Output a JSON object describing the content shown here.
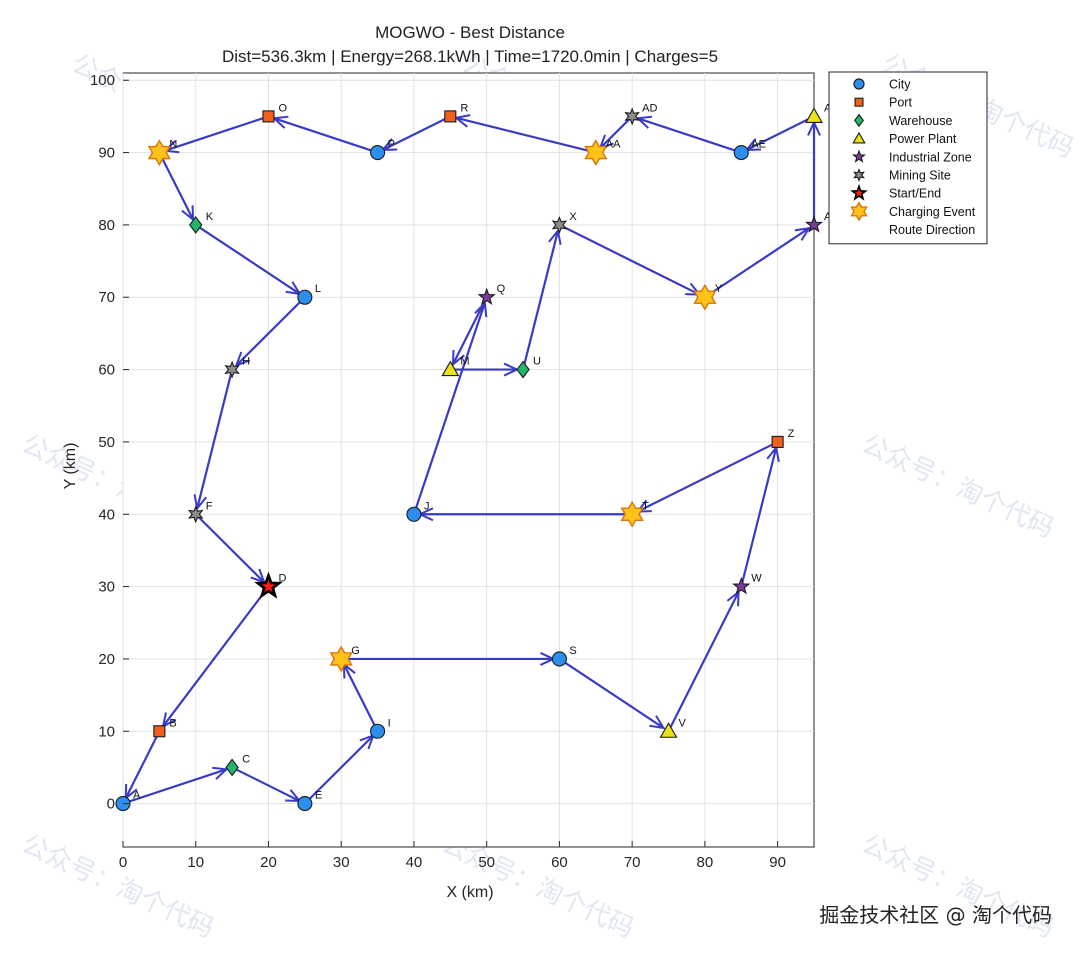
{
  "chart_data": {
    "type": "scatter",
    "title": "MOGWO - Best Distance",
    "subtitle": "Dist=536.3km | Energy=268.1kWh | Time=1720.0min | Charges=5",
    "xlabel": "X (km)",
    "ylabel": "Y (km)",
    "xlim": [
      0,
      95
    ],
    "ylim": [
      -6,
      101
    ],
    "xticks": [
      0,
      10,
      20,
      30,
      40,
      50,
      60,
      70,
      80,
      90
    ],
    "yticks": [
      0,
      10,
      20,
      30,
      40,
      50,
      60,
      70,
      80,
      90,
      100
    ],
    "grid": true,
    "legend_position": "top-right",
    "legend": [
      {
        "label": "City",
        "marker": "circle",
        "color": "#2b8ff0"
      },
      {
        "label": "Port",
        "marker": "square",
        "color": "#f0601c"
      },
      {
        "label": "Warehouse",
        "marker": "diamond",
        "color": "#1fb56a"
      },
      {
        "label": "Power Plant",
        "marker": "triangle",
        "color": "#e9e21a"
      },
      {
        "label": "Industrial Zone",
        "marker": "star5",
        "color": "#7a3d9c"
      },
      {
        "label": "Mining Site",
        "marker": "star6",
        "color": "#8c8c8c"
      },
      {
        "label": "Start/End",
        "marker": "startend",
        "color": "#000000"
      },
      {
        "label": "Charging Event",
        "marker": "charge",
        "color": "#ffb800"
      },
      {
        "label": "Route Direction",
        "marker": "none",
        "color": "#3a3ac8"
      }
    ],
    "points": [
      {
        "label": "A",
        "x": 0,
        "y": 0,
        "type": "City"
      },
      {
        "label": "B",
        "x": 5,
        "y": 10,
        "type": "Port"
      },
      {
        "label": "C",
        "x": 15,
        "y": 5,
        "type": "Warehouse"
      },
      {
        "label": "D",
        "x": 20,
        "y": 30,
        "type": "Start/End"
      },
      {
        "label": "E",
        "x": 25,
        "y": 0,
        "type": "City"
      },
      {
        "label": "F",
        "x": 10,
        "y": 40,
        "type": "Mining Site"
      },
      {
        "label": "G",
        "x": 30,
        "y": 20,
        "type": "Charging Event"
      },
      {
        "label": "H",
        "x": 15,
        "y": 60,
        "type": "Mining Site"
      },
      {
        "label": "I",
        "x": 35,
        "y": 10,
        "type": "City"
      },
      {
        "label": "J",
        "x": 40,
        "y": 40,
        "type": "City"
      },
      {
        "label": "K",
        "x": 10,
        "y": 80,
        "type": "Warehouse"
      },
      {
        "label": "L",
        "x": 25,
        "y": 70,
        "type": "City"
      },
      {
        "label": "M",
        "x": 45,
        "y": 60,
        "type": "Power Plant"
      },
      {
        "label": "N",
        "x": 5,
        "y": 90,
        "type": "Charging Event"
      },
      {
        "label": "O",
        "x": 20,
        "y": 95,
        "type": "Port"
      },
      {
        "label": "P",
        "x": 35,
        "y": 90,
        "type": "City"
      },
      {
        "label": "Q",
        "x": 50,
        "y": 70,
        "type": "Industrial Zone"
      },
      {
        "label": "R",
        "x": 45,
        "y": 95,
        "type": "Port"
      },
      {
        "label": "S",
        "x": 60,
        "y": 20,
        "type": "City"
      },
      {
        "label": "T",
        "x": 70,
        "y": 40,
        "type": "Charging Event"
      },
      {
        "label": "U",
        "x": 55,
        "y": 60,
        "type": "Warehouse"
      },
      {
        "label": "V",
        "x": 75,
        "y": 10,
        "type": "Power Plant"
      },
      {
        "label": "W",
        "x": 85,
        "y": 30,
        "type": "Industrial Zone"
      },
      {
        "label": "X",
        "x": 60,
        "y": 80,
        "type": "Mining Site"
      },
      {
        "label": "Y",
        "x": 80,
        "y": 70,
        "type": "Charging Event"
      },
      {
        "label": "Z",
        "x": 90,
        "y": 50,
        "type": "Port"
      },
      {
        "label": "AA",
        "x": 65,
        "y": 90,
        "type": "Charging Event"
      },
      {
        "label": "AB",
        "x": 95,
        "y": 80,
        "type": "Industrial Zone",
        "shown_label": "A"
      },
      {
        "label": "AC",
        "x": 95,
        "y": 95,
        "type": "Power Plant",
        "shown_label": "A"
      },
      {
        "label": "AD",
        "x": 70,
        "y": 95,
        "type": "Mining Site"
      },
      {
        "label": "AE",
        "x": 85,
        "y": 90,
        "type": "City"
      }
    ],
    "route": [
      "D",
      "B",
      "A",
      "C",
      "E",
      "I",
      "G",
      "S",
      "V",
      "W",
      "Z",
      "T",
      "J",
      "Q",
      "M",
      "U",
      "X",
      "Y",
      "AB",
      "AC",
      "AE",
      "AD",
      "AA",
      "R",
      "P",
      "O",
      "N",
      "K",
      "L",
      "H",
      "F",
      "D"
    ]
  },
  "watermarks": [
    "公众号：淘个代码",
    "公众号：淘个代码",
    "公众号：淘个代码",
    "公众号：淘个代码",
    "公众号：淘个代码",
    "公众号：淘个代码",
    "公众号：淘个代码",
    "公众号：淘个代码",
    "公众号：淘个代码"
  ],
  "footer": {
    "text": "掘金技术社区 @ 淘个代码"
  }
}
